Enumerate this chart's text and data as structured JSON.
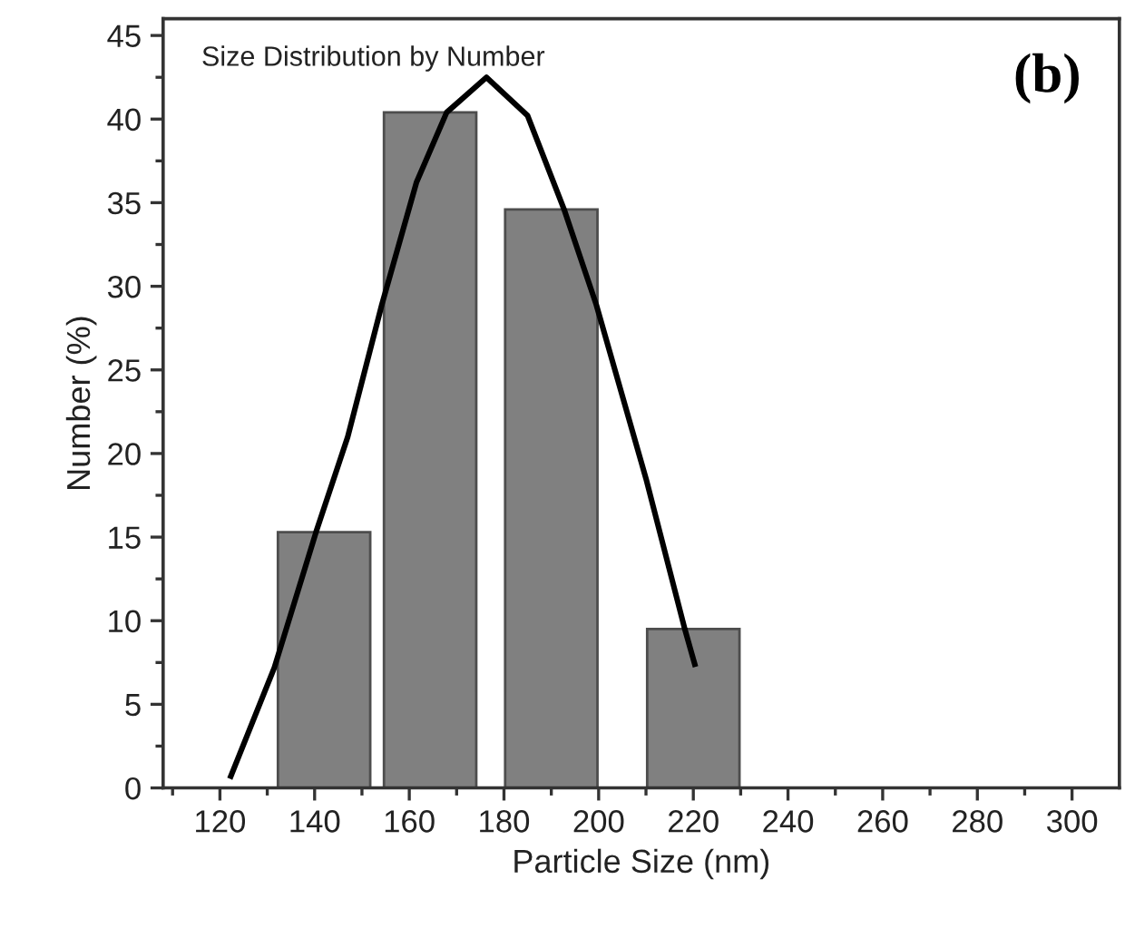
{
  "chart_data": {
    "type": "bar",
    "xlabel": "Particle Size (nm)",
    "ylabel": "Number (%)",
    "annotations": [
      "Size Distribution by Number",
      "(b)"
    ],
    "series": [
      {
        "color": "#808080",
        "x": [
          142,
          164.4,
          190,
          220
        ],
        "values": [
          15.3,
          40.4,
          34.6,
          9.5
        ]
      },
      {
        "type": "line",
        "color": "#000000",
        "x": [
          122.3,
          131.5,
          140.3,
          147,
          154.2,
          161.5,
          167.9,
          176.3,
          185,
          192.7,
          199.5,
          210,
          218.2,
          220.3
        ],
        "values": [
          0.7,
          7.2,
          15.3,
          21,
          28.9,
          36.2,
          40.4,
          42.5,
          40.2,
          34.6,
          28.9,
          18.5,
          9.5,
          7.4
        ]
      }
    ],
    "xlim": [
      108,
      310
    ],
    "ylim": [
      0,
      46
    ],
    "xticks": [
      {
        "value": 110,
        "label": null
      },
      120,
      {
        "value": 130,
        "label": null
      },
      140,
      {
        "value": 150,
        "label": null
      },
      160,
      {
        "value": 170,
        "label": null
      },
      180,
      {
        "value": 190,
        "label": null
      },
      200,
      {
        "value": 210,
        "label": null
      },
      220,
      {
        "value": 230,
        "label": null
      },
      240,
      {
        "value": 250,
        "label": null
      },
      260,
      {
        "value": 270,
        "label": null
      },
      280,
      {
        "value": 290,
        "label": null
      },
      300
    ],
    "yticks": [
      0,
      {
        "value": 2.5,
        "label": null
      },
      5,
      {
        "value": 7.5,
        "label": null
      },
      10,
      {
        "value": 12.5,
        "label": null
      },
      15,
      {
        "value": 17.5,
        "label": null
      },
      20,
      {
        "value": 22.5,
        "label": null
      },
      25,
      {
        "value": 27.5,
        "label": null
      },
      30,
      {
        "value": 32.5,
        "label": null
      },
      35,
      {
        "value": 37.5,
        "label": null
      },
      40,
      {
        "value": 42.5,
        "label": null
      },
      45
    ],
    "grid": false,
    "legend": false,
    "marker": "none",
    "line_style": "solid"
  }
}
